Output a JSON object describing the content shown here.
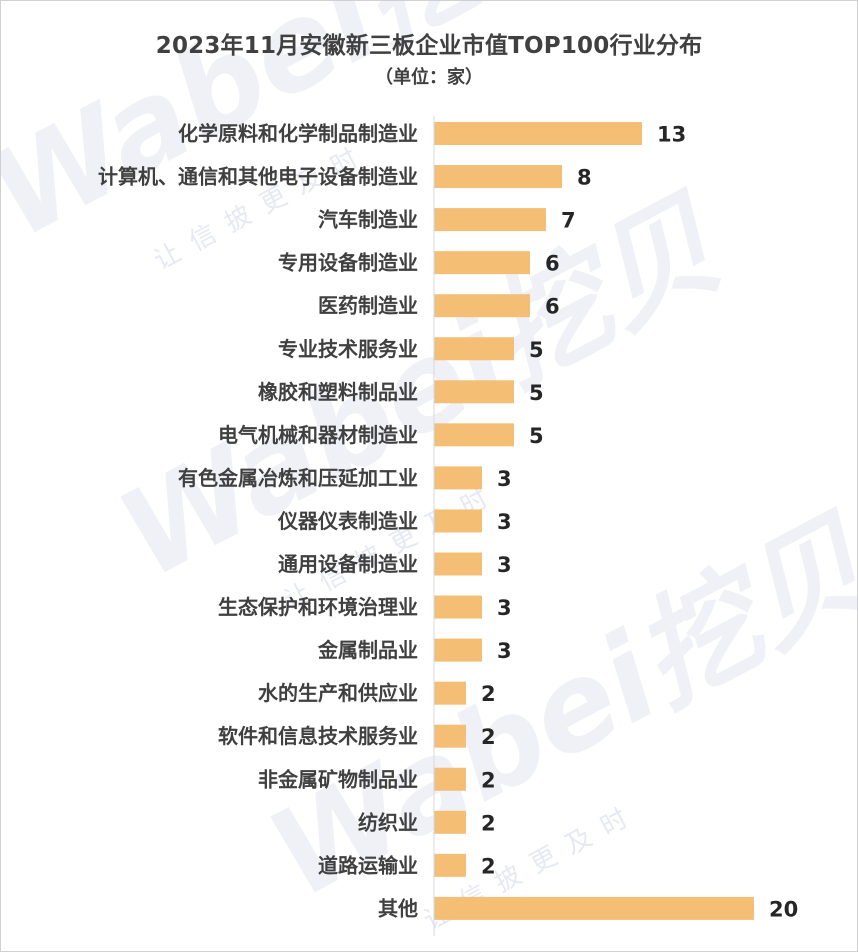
{
  "chart_data": {
    "type": "bar",
    "orientation": "horizontal",
    "title": "2023年11月安徽新三板企业市值TOP100行业分布",
    "subtitle": "（单位：家）",
    "categories": [
      "化学原料和化学制品制造业",
      "计算机、通信和其他电子设备制造业",
      "汽车制造业",
      "专用设备制造业",
      "医药制造业",
      "专业技术服务业",
      "橡胶和塑料制品业",
      "电气机械和器材制造业",
      "有色金属冶炼和压延加工业",
      "仪器仪表制造业",
      "通用设备制造业",
      "生态保护和环境治理业",
      "金属制品业",
      "水的生产和供应业",
      "软件和信息技术服务业",
      "非金属矿物制品业",
      "纺织业",
      "道路运输业",
      "其他"
    ],
    "values": [
      13,
      8,
      7,
      6,
      6,
      5,
      5,
      5,
      3,
      3,
      3,
      3,
      3,
      2,
      2,
      2,
      2,
      2,
      20
    ],
    "xlim": [
      0,
      20
    ],
    "grid": false,
    "legend": "none",
    "bar_color": "#f4be74"
  },
  "watermark": {
    "latin": "Wabei挖贝",
    "cn": "让信披更及时"
  }
}
